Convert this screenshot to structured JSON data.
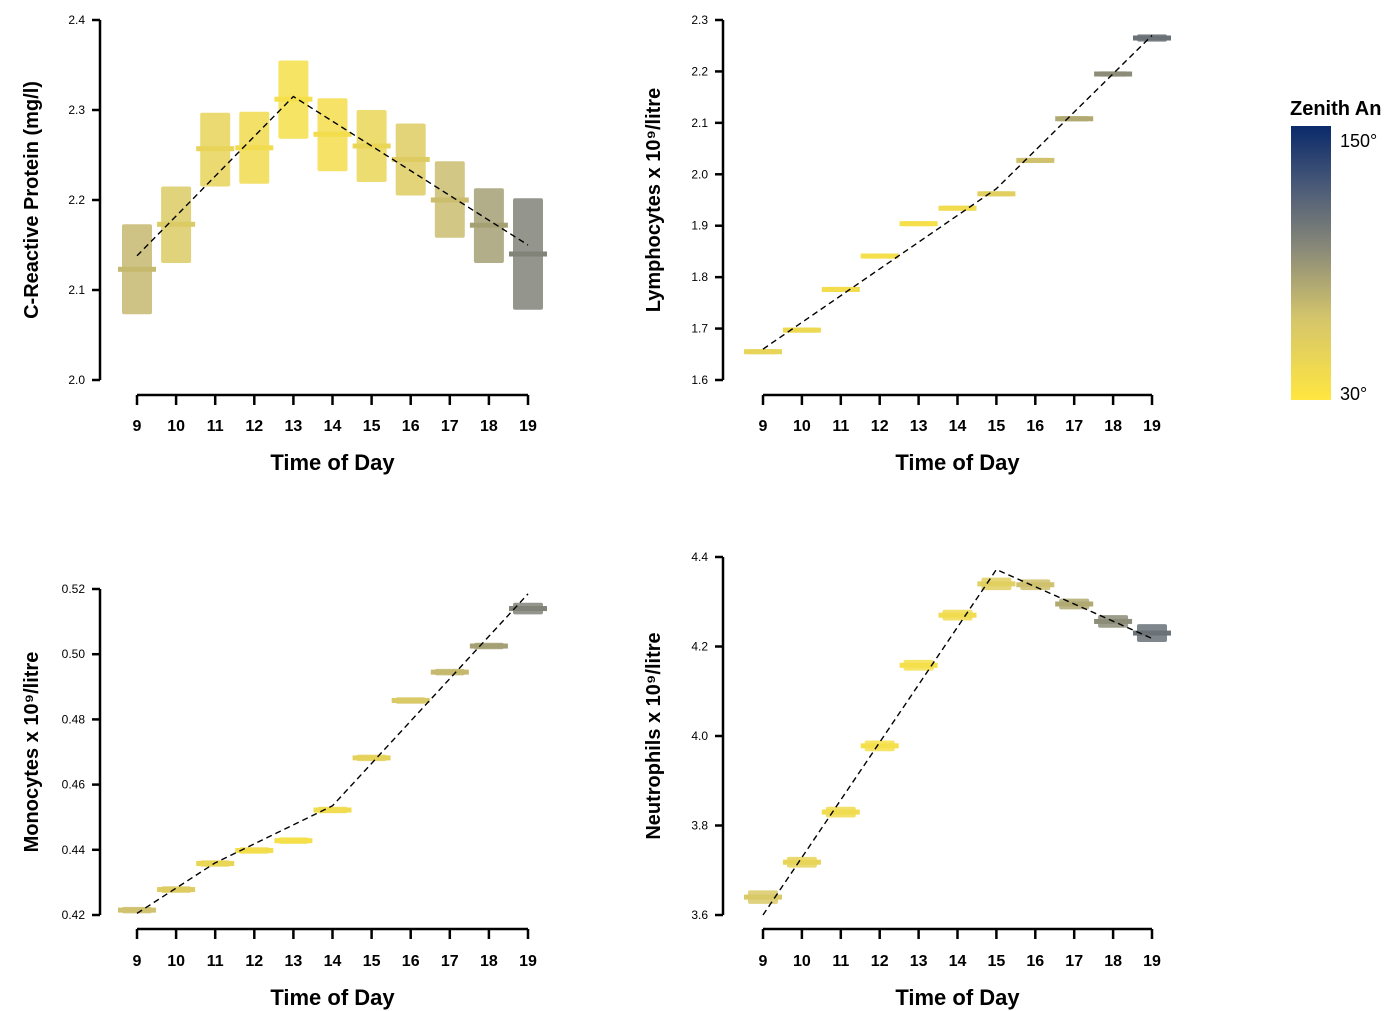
{
  "chart_data": [
    {
      "type": "crossbar",
      "xlabel": "Time of Day",
      "ylabel": "C-Reactive Protein (mg/l)",
      "ylim": [
        2.0,
        2.4
      ],
      "yticks": [
        "2.0",
        "2.1",
        "2.2",
        "2.3",
        "2.4"
      ],
      "x": [
        9,
        10,
        11,
        12,
        13,
        14,
        15,
        16,
        17,
        18,
        19
      ],
      "mean": [
        2.123,
        2.173,
        2.257,
        2.258,
        2.312,
        2.273,
        2.26,
        2.245,
        2.2,
        2.172,
        2.14
      ],
      "lower": [
        2.073,
        2.13,
        2.215,
        2.218,
        2.268,
        2.232,
        2.22,
        2.205,
        2.158,
        2.13,
        2.078
      ],
      "upper": [
        2.173,
        2.215,
        2.297,
        2.298,
        2.355,
        2.313,
        2.3,
        2.285,
        2.243,
        2.213,
        2.202
      ],
      "fit_line": [
        [
          9,
          2.138
        ],
        [
          13,
          2.315
        ],
        [
          19,
          2.15
        ]
      ],
      "zenith": [
        72,
        60,
        50,
        42,
        38,
        40,
        48,
        58,
        70,
        85,
        100
      ]
    },
    {
      "type": "crossbar",
      "xlabel": "Time of Day",
      "ylabel": "Lymphocytes x 10⁹/litre",
      "ylim": [
        1.6,
        2.3
      ],
      "yticks": [
        "1.6",
        "1.7",
        "1.8",
        "1.9",
        "2.0",
        "2.1",
        "2.2",
        "2.3"
      ],
      "x": [
        9,
        10,
        11,
        12,
        13,
        14,
        15,
        16,
        17,
        18,
        19
      ],
      "mean": [
        1.655,
        1.697,
        1.776,
        1.841,
        1.904,
        1.934,
        1.962,
        2.027,
        2.108,
        2.195,
        2.265
      ],
      "lower": [
        1.65,
        1.692,
        1.771,
        1.836,
        1.899,
        1.929,
        1.957,
        2.022,
        2.103,
        2.19,
        2.258
      ],
      "upper": [
        1.66,
        1.702,
        1.781,
        1.846,
        1.909,
        1.939,
        1.967,
        2.032,
        2.113,
        2.2,
        2.272
      ],
      "fit_line": [
        [
          9,
          1.66
        ],
        [
          15,
          1.972
        ],
        [
          19,
          2.27
        ]
      ],
      "zenith": [
        50,
        45,
        40,
        38,
        38,
        42,
        55,
        68,
        80,
        95,
        110
      ]
    },
    {
      "type": "crossbar",
      "xlabel": "Time of Day",
      "ylabel": "Monocytes x 10⁹/litre",
      "ylim": [
        0.42,
        0.52
      ],
      "yticks": [
        "0.42",
        "0.44",
        "0.46",
        "0.48",
        "0.50",
        "0.52"
      ],
      "x": [
        9,
        10,
        11,
        12,
        13,
        14,
        15,
        16,
        17,
        18,
        19
      ],
      "mean": [
        0.4215,
        0.4278,
        0.4358,
        0.4398,
        0.4428,
        0.4522,
        0.4682,
        0.4858,
        0.4945,
        0.5025,
        0.514
      ],
      "lower": [
        0.4205,
        0.4268,
        0.4348,
        0.4388,
        0.4418,
        0.4512,
        0.4672,
        0.4848,
        0.4935,
        0.5015,
        0.5122
      ],
      "upper": [
        0.4225,
        0.4288,
        0.4368,
        0.4408,
        0.4438,
        0.4532,
        0.4692,
        0.4868,
        0.4955,
        0.5035,
        0.5158
      ],
      "fit_line": [
        [
          9,
          0.4205
        ],
        [
          11,
          0.436
        ],
        [
          14,
          0.4535
        ],
        [
          19,
          0.5185
        ]
      ],
      "zenith": [
        68,
        58,
        48,
        40,
        38,
        42,
        52,
        62,
        72,
        85,
        100
      ]
    },
    {
      "type": "crossbar",
      "xlabel": "Time of Day",
      "ylabel": "Neutrophils x 10⁹/litre",
      "ylim": [
        3.6,
        4.4
      ],
      "yticks": [
        "3.6",
        "3.8",
        "4.0",
        "4.2",
        "4.4"
      ],
      "x": [
        9,
        10,
        11,
        12,
        13,
        14,
        15,
        16,
        17,
        18,
        19
      ],
      "mean": [
        3.64,
        3.718,
        3.83,
        3.978,
        4.158,
        4.27,
        4.34,
        4.338,
        4.295,
        4.256,
        4.23
      ],
      "lower": [
        3.625,
        3.706,
        3.818,
        3.966,
        4.146,
        4.258,
        4.326,
        4.326,
        4.283,
        4.242,
        4.21
      ],
      "upper": [
        3.655,
        3.73,
        3.842,
        3.99,
        4.17,
        4.282,
        4.354,
        4.35,
        4.307,
        4.27,
        4.25
      ],
      "fit_line": [
        [
          9,
          3.6
        ],
        [
          15,
          4.372
        ],
        [
          19,
          4.218
        ]
      ],
      "zenith": [
        62,
        50,
        42,
        38,
        38,
        42,
        55,
        68,
        80,
        95,
        110
      ]
    }
  ],
  "legend": {
    "title": "Zenith An",
    "max_label": "150°",
    "min_label": "30°",
    "range": [
      30,
      150
    ],
    "colors": {
      "low": "#FFE640",
      "mid": "#8A8A78",
      "high": "#0A2A6A"
    }
  },
  "styles": {
    "fit_line_color": "#000000",
    "axis_color": "#000000"
  }
}
